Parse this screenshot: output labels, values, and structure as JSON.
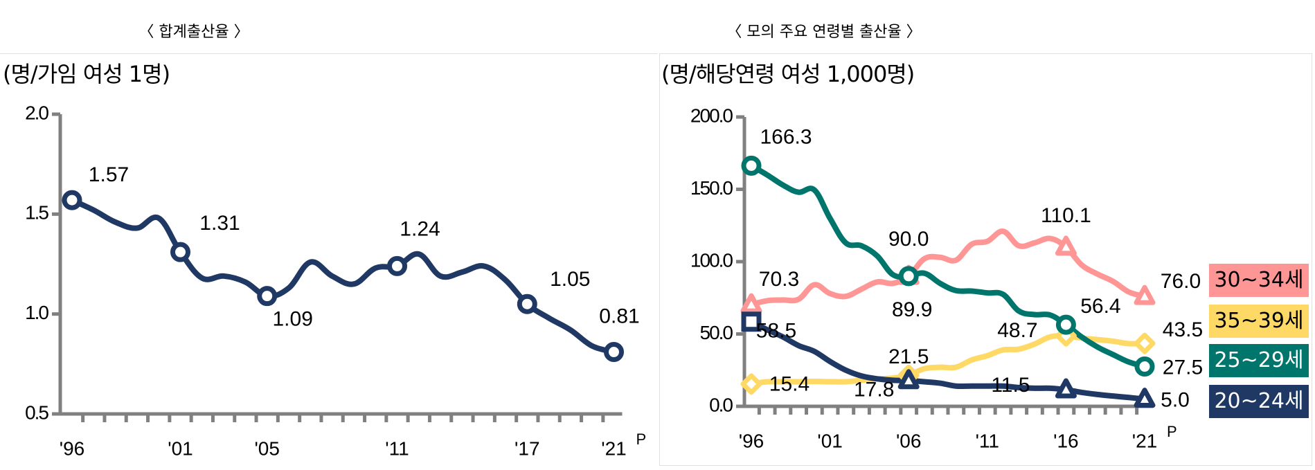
{
  "chart_data": [
    {
      "type": "line",
      "title": "〈 합계출산율 〉",
      "ylabel": "(명/가임 여성 1명)",
      "ylim": [
        0.5,
        2.0
      ],
      "yticks": [
        "0.5",
        "1.0",
        "1.5",
        "2.0"
      ],
      "xtick_labels": [
        {
          "year": 1996,
          "label": "'96"
        },
        {
          "year": 2001,
          "label": "'01"
        },
        {
          "year": 2005,
          "label": "'05"
        },
        {
          "year": 2011,
          "label": "'11"
        },
        {
          "year": 2017,
          "label": "'17"
        },
        {
          "year": 2021,
          "label": "'21"
        }
      ],
      "last_tick_suffix": "P",
      "x": [
        1996,
        1997,
        1998,
        1999,
        2000,
        2001,
        2002,
        2003,
        2004,
        2005,
        2006,
        2007,
        2008,
        2009,
        2010,
        2011,
        2012,
        2013,
        2014,
        2015,
        2016,
        2017,
        2018,
        2019,
        2020,
        2021
      ],
      "series": [
        {
          "color": "#203864",
          "marker": "circle",
          "values": [
            1.57,
            1.52,
            1.46,
            1.43,
            1.48,
            1.31,
            1.18,
            1.19,
            1.16,
            1.09,
            1.13,
            1.26,
            1.19,
            1.15,
            1.23,
            1.24,
            1.3,
            1.19,
            1.21,
            1.24,
            1.17,
            1.05,
            0.98,
            0.92,
            0.84,
            0.81
          ],
          "labels": [
            {
              "year": 1996,
              "text": "1.57"
            },
            {
              "year": 2001,
              "text": "1.31"
            },
            {
              "year": 2005,
              "text": "1.09"
            },
            {
              "year": 2011,
              "text": "1.24"
            },
            {
              "year": 2017,
              "text": "1.05"
            },
            {
              "year": 2021,
              "text": "0.81"
            }
          ]
        }
      ]
    },
    {
      "type": "line",
      "title": "〈 모의 주요 연령별 출산율 〉",
      "ylabel": "(명/해당연령 여성 1,000명)",
      "ylim": [
        0,
        200
      ],
      "yticks": [
        "0.0",
        "50.0",
        "100.0",
        "150.0",
        "200.0"
      ],
      "xtick_labels": [
        {
          "year": 1996,
          "label": "'96"
        },
        {
          "year": 2001,
          "label": "'01"
        },
        {
          "year": 2006,
          "label": "'06"
        },
        {
          "year": 2011,
          "label": "'11"
        },
        {
          "year": 2016,
          "label": "'16"
        },
        {
          "year": 2021,
          "label": "'21"
        }
      ],
      "last_tick_suffix": "P",
      "legend_placement": "right",
      "x": [
        1996,
        1997,
        1998,
        1999,
        2000,
        2001,
        2002,
        2003,
        2004,
        2005,
        2006,
        2007,
        2008,
        2009,
        2010,
        2011,
        2012,
        2013,
        2014,
        2015,
        2016,
        2017,
        2018,
        2019,
        2020,
        2021
      ],
      "series": [
        {
          "name": "30~34세",
          "color": "#FF9696",
          "text_color": "#000000",
          "marker": "triangle",
          "values": [
            70.3,
            73,
            73.5,
            74,
            84,
            78,
            76,
            81,
            86,
            85,
            89.9,
            102,
            103,
            101,
            112,
            114,
            121,
            111,
            113,
            116,
            110.1,
            97.7,
            91.4,
            86.3,
            79.0,
            76.0
          ],
          "labels": [
            {
              "year": 1996,
              "text": "70.3"
            },
            {
              "year": 2006,
              "text": "89.9"
            },
            {
              "year": 2016,
              "text": "110.1"
            },
            {
              "year": 2021,
              "text": "76.0"
            }
          ]
        },
        {
          "name": "35~39세",
          "color": "#FFD966",
          "text_color": "#000000",
          "marker": "diamond",
          "values": [
            15.4,
            17,
            17,
            17,
            17.2,
            17,
            17,
            18,
            19,
            19.5,
            21.5,
            26,
            27,
            27,
            32,
            35,
            39,
            39.5,
            43,
            48,
            48.7,
            47.2,
            46.1,
            45.0,
            43.3,
            43.5
          ],
          "labels": [
            {
              "year": 1996,
              "text": "15.4"
            },
            {
              "year": 2006,
              "text": "21.5"
            },
            {
              "year": 2016,
              "text": "48.7"
            },
            {
              "year": 2021,
              "text": "43.5"
            }
          ]
        },
        {
          "name": "25~29세",
          "color": "#00756C",
          "text_color": "#FFFFFF",
          "marker": "circle",
          "values": [
            166.3,
            160,
            153,
            148,
            149.6,
            130,
            113,
            111,
            104,
            91,
            90.0,
            92,
            85,
            80,
            79.7,
            78.4,
            77.4,
            65.9,
            63.4,
            63.1,
            56.4,
            47.9,
            41.0,
            35.7,
            30.6,
            27.5
          ],
          "labels": [
            {
              "year": 1996,
              "text": "166.3"
            },
            {
              "year": 2006,
              "text": "90.0"
            },
            {
              "year": 2016,
              "text": "56.4"
            },
            {
              "year": 2021,
              "text": "27.5"
            }
          ]
        },
        {
          "name": "20~24세",
          "color": "#203864",
          "text_color": "#FFFFFF",
          "marker": "triangle",
          "first_marker": "square",
          "values": [
            58.5,
            53,
            48,
            42,
            38,
            31,
            25,
            21,
            19,
            18,
            17.8,
            17,
            16,
            14,
            14,
            14,
            14,
            13,
            12.5,
            12.5,
            11.5,
            9.6,
            8.2,
            7.1,
            6.1,
            5.0
          ],
          "labels": [
            {
              "year": 1996,
              "text": "58.5"
            },
            {
              "year": 2006,
              "text": "17.8"
            },
            {
              "year": 2016,
              "text": "11.5"
            },
            {
              "year": 2021,
              "text": "5.0"
            }
          ]
        }
      ]
    }
  ]
}
